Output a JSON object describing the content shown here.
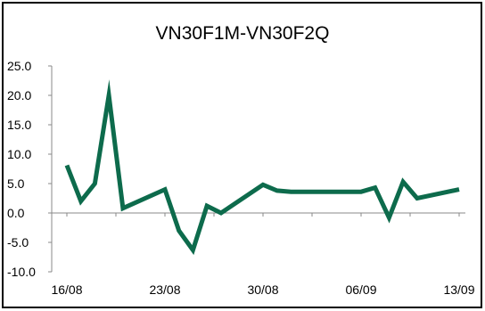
{
  "chart_data": {
    "type": "line",
    "title": "VN30F1M-VN30F2Q",
    "xlabel": "",
    "ylabel": "",
    "ylim": [
      -10,
      25
    ],
    "yticks": [
      25,
      20,
      15,
      10,
      5,
      0,
      -5,
      -10
    ],
    "ytick_labels": [
      "25.0",
      "20.0",
      "15.0",
      "10.0",
      "5.0",
      "0.0",
      "-5.0",
      "-10.0"
    ],
    "xtick_labels": [
      {
        "label": "16/08",
        "x": "16/08"
      },
      {
        "label": "23/08",
        "x": "23/08"
      },
      {
        "label": "30/08",
        "x": "30/08"
      },
      {
        "label": "06/09",
        "x": "06/09"
      },
      {
        "label": "13/09",
        "x": "13/09"
      }
    ],
    "grid": false,
    "legend": "none",
    "color": "#0d6b4c",
    "series": [
      {
        "x": [
          "16/08",
          "17/08",
          "18/08",
          "19/08",
          "20/08",
          "23/08",
          "24/08",
          "25/08",
          "26/08",
          "27/08",
          "30/08",
          "31/08",
          "01/09",
          "06/09",
          "07/09",
          "08/09",
          "09/09",
          "10/09",
          "13/09"
        ],
        "values": [
          8.1,
          2.0,
          5.0,
          20.0,
          0.8,
          4.0,
          -3.0,
          -6.3,
          1.2,
          0.0,
          4.8,
          3.8,
          3.6,
          3.6,
          4.3,
          -0.8,
          5.3,
          2.5,
          4.0
        ]
      }
    ]
  }
}
